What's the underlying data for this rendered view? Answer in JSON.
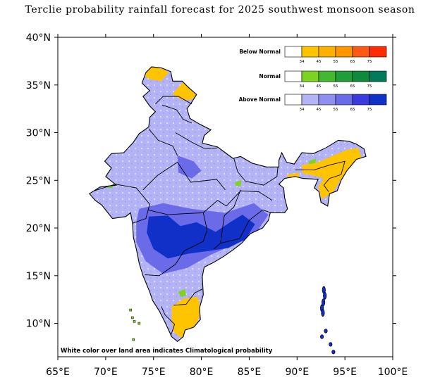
{
  "title": "Terclie probability rainfall forecast for 2025 southwest monsoon  season",
  "map": {
    "lon_range": [
      65,
      100
    ],
    "lat_range": [
      6.5,
      40
    ],
    "x_ticks": [
      "65°E",
      "70°E",
      "75°E",
      "80°E",
      "85°E",
      "90°E",
      "95°E",
      "100°E"
    ],
    "y_ticks": [
      "40°N",
      "35°N",
      "30°N",
      "25°N",
      "20°N",
      "15°N",
      "10°N"
    ],
    "note": "White color over land area indicates Climatological probability"
  },
  "legend": {
    "tick_labels": [
      "34",
      "45",
      "55",
      "65",
      "75"
    ],
    "categories": [
      {
        "label": "Below Normal",
        "colors": [
          "#ffffff",
          "#ffc400",
          "#ffb000",
          "#ff9500",
          "#ff5a14",
          "#ff2a00"
        ]
      },
      {
        "label": "Normal",
        "colors": [
          "#ffffff",
          "#7ed321",
          "#44b82e",
          "#1f9e3a",
          "#0d8a3c",
          "#007a5a"
        ]
      },
      {
        "label": "Above Normal",
        "colors": [
          "#ffffff",
          "#b3b3f5",
          "#8f8ff0",
          "#6b6bea",
          "#3a3ade",
          "#1030c8"
        ]
      }
    ]
  },
  "colors": {
    "above_light": "#b3b3f5",
    "above_mid": "#6b6bea",
    "above_dark": "#1030c8",
    "below": "#ffc400",
    "normal": "#7ed321"
  }
}
